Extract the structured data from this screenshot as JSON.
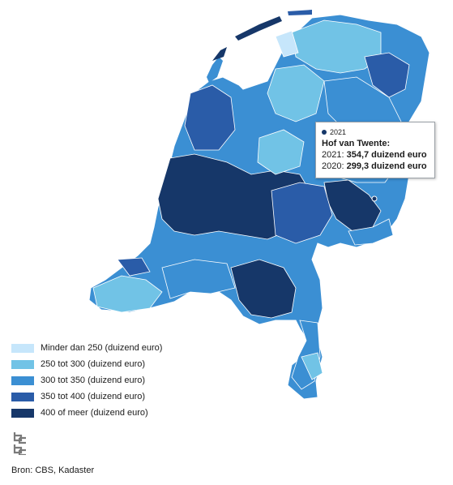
{
  "map": {
    "title": "",
    "classes": [
      {
        "label": "Minder dan 250 (duizend euro)",
        "color": "#c6e6fb"
      },
      {
        "label": "250 tot 300 (duizend euro)",
        "color": "#71c3e6"
      },
      {
        "label": "300 tot 350 (duizend euro)",
        "color": "#3b8fd3"
      },
      {
        "label": "350 tot 400 (duizend euro)",
        "color": "#2a5ca8"
      },
      {
        "label": "400 of meer (duizend euro)",
        "color": "#163769"
      }
    ]
  },
  "tooltip": {
    "year_label": "2021",
    "dot_color": "#163769",
    "title": "Hof van Twente:",
    "line_2021_prefix": "2021: ",
    "line_2021_value": "354,7 duizend euro",
    "line_2020_prefix": "2020: ",
    "line_2020_value": "299,3 duizend euro"
  },
  "logo_icon": "cbs-logo-icon",
  "source": "Bron: CBS, Kadaster"
}
